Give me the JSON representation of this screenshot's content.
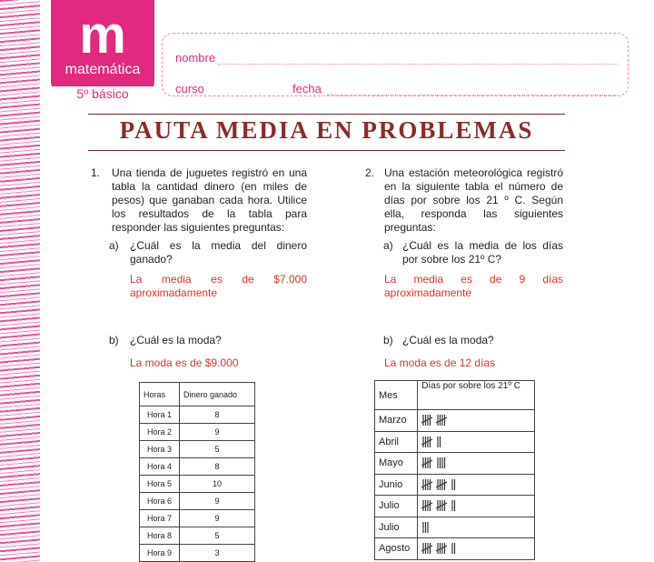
{
  "header": {
    "logo_letter": "m",
    "logo_subject": "matemática",
    "grade": "5º básico",
    "fields": [
      "nombre",
      "curso",
      "fecha"
    ]
  },
  "title": "PAUTA MEDIA EN PROBLEMAS",
  "problems": [
    {
      "number": "1.",
      "statement": "Una tienda de juguetes registró en una tabla la cantidad dinero (en miles de pesos) que ganaban cada hora. Utilice los resultados de la tabla para responder las siguientes preguntas:",
      "questions": [
        {
          "label": "a)",
          "text": "¿Cuál es la media del dinero ganado?",
          "answer": "La media es de $7.000 aproximadamente"
        },
        {
          "label": "b)",
          "text": "¿Cuál es la moda?",
          "answer": "La moda es de $9.000"
        }
      ],
      "table": {
        "headers": [
          "Horas",
          "Dinero ganado"
        ],
        "rows": [
          [
            "Hora 1",
            8
          ],
          [
            "Hora 2",
            9
          ],
          [
            "Hora 3",
            5
          ],
          [
            "Hora 4",
            8
          ],
          [
            "Hora 5",
            10
          ],
          [
            "Hora 6",
            9
          ],
          [
            "Hora 7",
            9
          ],
          [
            "Hora 8",
            5
          ],
          [
            "Hora 9",
            3
          ]
        ]
      }
    },
    {
      "number": "2.",
      "statement": "Una estación meteorológica registró en la siguiente tabla el número de días por sobre los 21 º C. Según ella, responda las siguientes preguntas:",
      "questions": [
        {
          "label": "a)",
          "text": "¿Cuál es la media de los días por sobre los 21º C?",
          "answer": "La media es de 9 días aproximadamente"
        },
        {
          "label": "b)",
          "text": "¿Cuál es la moda?",
          "answer": "La moda es de 12 días"
        }
      ],
      "table": {
        "headers": [
          "Mes",
          "Días por sobre los 21º C"
        ],
        "rows": [
          [
            "Marzo",
            10
          ],
          [
            "Abril",
            7
          ],
          [
            "Mayo",
            9
          ],
          [
            "Junio",
            12
          ],
          [
            "Julio",
            12
          ],
          [
            "Julio",
            3
          ],
          [
            "Agosto",
            12
          ]
        ]
      }
    }
  ]
}
